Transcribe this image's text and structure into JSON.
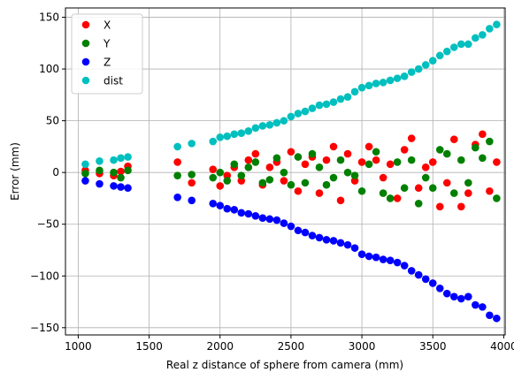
{
  "chart_data": {
    "type": "scatter",
    "title": "",
    "xlabel": "Real z distance of sphere from camera (mm)",
    "ylabel": "Error (mm)",
    "xlim": [
      910,
      4010
    ],
    "ylim": [
      -157,
      159
    ],
    "xticks": [
      1000,
      1500,
      2000,
      2500,
      3000,
      3500,
      4000
    ],
    "yticks": [
      -150,
      -100,
      -50,
      0,
      50,
      100,
      150
    ],
    "grid": true,
    "legend": "upper-left",
    "series": [
      {
        "name": "X",
        "color": "#ff0000",
        "points": [
          [
            1050,
            2
          ],
          [
            1150,
            -1
          ],
          [
            1250,
            -3
          ],
          [
            1300,
            1
          ],
          [
            1350,
            6
          ],
          [
            1700,
            10
          ],
          [
            1800,
            -10
          ],
          [
            1950,
            3
          ],
          [
            2000,
            -13
          ],
          [
            2050,
            -3
          ],
          [
            2100,
            5
          ],
          [
            2150,
            -8
          ],
          [
            2200,
            12
          ],
          [
            2250,
            18
          ],
          [
            2300,
            -12
          ],
          [
            2350,
            5
          ],
          [
            2400,
            10
          ],
          [
            2450,
            -8
          ],
          [
            2500,
            20
          ],
          [
            2550,
            -18
          ],
          [
            2600,
            8
          ],
          [
            2650,
            15
          ],
          [
            2700,
            -20
          ],
          [
            2750,
            12
          ],
          [
            2800,
            25
          ],
          [
            2850,
            -27
          ],
          [
            2900,
            18
          ],
          [
            2950,
            -8
          ],
          [
            3000,
            10
          ],
          [
            3050,
            25
          ],
          [
            3100,
            12
          ],
          [
            3150,
            -5
          ],
          [
            3200,
            8
          ],
          [
            3250,
            -25
          ],
          [
            3300,
            22
          ],
          [
            3350,
            33
          ],
          [
            3400,
            -15
          ],
          [
            3450,
            5
          ],
          [
            3500,
            10
          ],
          [
            3550,
            -33
          ],
          [
            3600,
            -10
          ],
          [
            3650,
            32
          ],
          [
            3700,
            -33
          ],
          [
            3750,
            -20
          ],
          [
            3800,
            27
          ],
          [
            3850,
            37
          ],
          [
            3900,
            -18
          ],
          [
            3950,
            10
          ]
        ]
      },
      {
        "name": "Y",
        "color": "#008000",
        "points": [
          [
            1050,
            -1
          ],
          [
            1150,
            2
          ],
          [
            1250,
            0
          ],
          [
            1300,
            -5
          ],
          [
            1350,
            2
          ],
          [
            1700,
            -3
          ],
          [
            1800,
            -2
          ],
          [
            1950,
            -5
          ],
          [
            2000,
            0
          ],
          [
            2050,
            -8
          ],
          [
            2100,
            8
          ],
          [
            2150,
            -3
          ],
          [
            2200,
            5
          ],
          [
            2250,
            10
          ],
          [
            2300,
            -10
          ],
          [
            2350,
            -7
          ],
          [
            2400,
            14
          ],
          [
            2450,
            0
          ],
          [
            2500,
            -12
          ],
          [
            2550,
            15
          ],
          [
            2600,
            -10
          ],
          [
            2650,
            18
          ],
          [
            2700,
            5
          ],
          [
            2750,
            -12
          ],
          [
            2800,
            -5
          ],
          [
            2850,
            12
          ],
          [
            2900,
            0
          ],
          [
            2950,
            -3
          ],
          [
            3000,
            -18
          ],
          [
            3050,
            8
          ],
          [
            3100,
            20
          ],
          [
            3150,
            -20
          ],
          [
            3200,
            -25
          ],
          [
            3250,
            10
          ],
          [
            3300,
            -15
          ],
          [
            3350,
            12
          ],
          [
            3400,
            -30
          ],
          [
            3450,
            -5
          ],
          [
            3500,
            -15
          ],
          [
            3550,
            22
          ],
          [
            3600,
            18
          ],
          [
            3650,
            -20
          ],
          [
            3700,
            12
          ],
          [
            3750,
            -10
          ],
          [
            3800,
            24
          ],
          [
            3850,
            14
          ],
          [
            3900,
            30
          ],
          [
            3950,
            -25
          ]
        ]
      },
      {
        "name": "Z",
        "color": "#0000ff",
        "points": [
          [
            1050,
            -8
          ],
          [
            1150,
            -11
          ],
          [
            1250,
            -13
          ],
          [
            1300,
            -14
          ],
          [
            1350,
            -15
          ],
          [
            1700,
            -24
          ],
          [
            1800,
            -27
          ],
          [
            1950,
            -30
          ],
          [
            2000,
            -32
          ],
          [
            2050,
            -35
          ],
          [
            2100,
            -36
          ],
          [
            2150,
            -39
          ],
          [
            2200,
            -40
          ],
          [
            2250,
            -42
          ],
          [
            2300,
            -44
          ],
          [
            2350,
            -45
          ],
          [
            2400,
            -46
          ],
          [
            2450,
            -49
          ],
          [
            2500,
            -52
          ],
          [
            2550,
            -56
          ],
          [
            2600,
            -58
          ],
          [
            2650,
            -61
          ],
          [
            2700,
            -63
          ],
          [
            2750,
            -65
          ],
          [
            2800,
            -66
          ],
          [
            2850,
            -68
          ],
          [
            2900,
            -70
          ],
          [
            2950,
            -73
          ],
          [
            3000,
            -79
          ],
          [
            3050,
            -81
          ],
          [
            3100,
            -82
          ],
          [
            3150,
            -84
          ],
          [
            3200,
            -85
          ],
          [
            3250,
            -87
          ],
          [
            3300,
            -90
          ],
          [
            3350,
            -95
          ],
          [
            3400,
            -99
          ],
          [
            3450,
            -103
          ],
          [
            3500,
            -107
          ],
          [
            3550,
            -112
          ],
          [
            3600,
            -117
          ],
          [
            3650,
            -120
          ],
          [
            3700,
            -122
          ],
          [
            3750,
            -120
          ],
          [
            3800,
            -128
          ],
          [
            3850,
            -130
          ],
          [
            3900,
            -138
          ],
          [
            3950,
            -141
          ]
        ]
      },
      {
        "name": "dist",
        "color": "#00bfbf",
        "points": [
          [
            1050,
            8
          ],
          [
            1150,
            11
          ],
          [
            1250,
            12
          ],
          [
            1300,
            14
          ],
          [
            1350,
            15
          ],
          [
            1700,
            25
          ],
          [
            1800,
            28
          ],
          [
            1950,
            30
          ],
          [
            2000,
            34
          ],
          [
            2050,
            35
          ],
          [
            2100,
            37
          ],
          [
            2150,
            38
          ],
          [
            2200,
            40
          ],
          [
            2250,
            43
          ],
          [
            2300,
            45
          ],
          [
            2350,
            46
          ],
          [
            2400,
            48
          ],
          [
            2450,
            50
          ],
          [
            2500,
            54
          ],
          [
            2550,
            57
          ],
          [
            2600,
            59
          ],
          [
            2650,
            62
          ],
          [
            2700,
            65
          ],
          [
            2750,
            66
          ],
          [
            2800,
            68
          ],
          [
            2850,
            71
          ],
          [
            2900,
            73
          ],
          [
            2950,
            78
          ],
          [
            3000,
            82
          ],
          [
            3050,
            84
          ],
          [
            3100,
            86
          ],
          [
            3150,
            87
          ],
          [
            3200,
            89
          ],
          [
            3250,
            91
          ],
          [
            3300,
            93
          ],
          [
            3350,
            97
          ],
          [
            3400,
            100
          ],
          [
            3450,
            104
          ],
          [
            3500,
            108
          ],
          [
            3550,
            113
          ],
          [
            3600,
            117
          ],
          [
            3650,
            121
          ],
          [
            3700,
            124
          ],
          [
            3750,
            124
          ],
          [
            3800,
            130
          ],
          [
            3850,
            133
          ],
          [
            3900,
            139
          ],
          [
            3950,
            143
          ]
        ]
      }
    ]
  }
}
